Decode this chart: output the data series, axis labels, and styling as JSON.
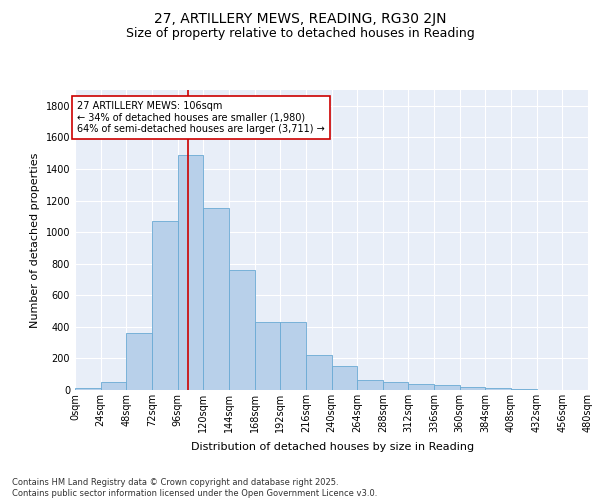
{
  "title_line1": "27, ARTILLERY MEWS, READING, RG30 2JN",
  "title_line2": "Size of property relative to detached houses in Reading",
  "xlabel": "Distribution of detached houses by size in Reading",
  "ylabel": "Number of detached properties",
  "bar_color": "#b8d0ea",
  "bar_edge_color": "#6aaad4",
  "background_color": "#e8eef8",
  "grid_color": "#ffffff",
  "annotation_box_color": "#cc0000",
  "vline_color": "#cc0000",
  "vline_x": 106,
  "annotation_text": "27 ARTILLERY MEWS: 106sqm\n← 34% of detached houses are smaller (1,980)\n64% of semi-detached houses are larger (3,711) →",
  "bin_edges": [
    0,
    24,
    48,
    72,
    96,
    120,
    144,
    168,
    192,
    216,
    240,
    264,
    288,
    312,
    336,
    360,
    384,
    408,
    432,
    456,
    480
  ],
  "bar_heights": [
    10,
    50,
    360,
    1070,
    1490,
    1150,
    760,
    430,
    430,
    220,
    155,
    65,
    50,
    40,
    30,
    20,
    10,
    5,
    0,
    3
  ],
  "ylim": [
    0,
    1900
  ],
  "yticks": [
    0,
    200,
    400,
    600,
    800,
    1000,
    1200,
    1400,
    1600,
    1800
  ],
  "footer_text": "Contains HM Land Registry data © Crown copyright and database right 2025.\nContains public sector information licensed under the Open Government Licence v3.0.",
  "title_fontsize": 10,
  "subtitle_fontsize": 9,
  "axis_label_fontsize": 8,
  "tick_fontsize": 7,
  "annotation_fontsize": 7,
  "footer_fontsize": 6
}
